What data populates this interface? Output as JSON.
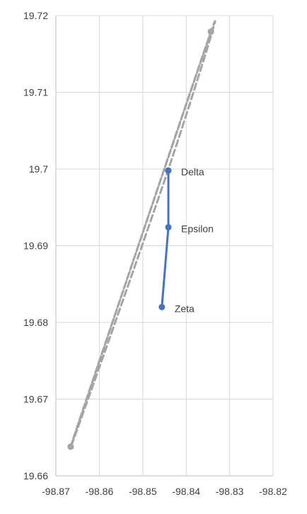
{
  "chart_data": {
    "type": "scatter",
    "title": "",
    "xlabel": "",
    "ylabel": "",
    "xlim": [
      -98.87,
      -98.82
    ],
    "ylim": [
      19.66,
      19.72
    ],
    "grid": true,
    "legend": "none",
    "x_ticks": [
      -98.87,
      -98.86,
      -98.85,
      -98.84,
      -98.83,
      -98.82
    ],
    "x_tick_labels": [
      "-98.87",
      "-98.86",
      "-98.85",
      "-98.84",
      "-98.83",
      "-98.82"
    ],
    "y_ticks": [
      19.66,
      19.67,
      19.68,
      19.69,
      19.7,
      19.71,
      19.72
    ],
    "y_tick_labels": [
      "19.66",
      "19.67",
      "19.68",
      "19.69",
      "19.7",
      "19.71",
      "19.72"
    ],
    "colors": {
      "grid": "#d9d9d9",
      "axis": "#bfbfbf",
      "outline_series": "#a5a5a5",
      "path_series": "#4472c4",
      "text": "#404040"
    },
    "series": [
      {
        "style": "dashed-curve",
        "color": "#a5a5a5",
        "points": [
          {
            "x": -98.8666,
            "y": 19.6638
          },
          {
            "x": -98.8343,
            "y": 19.7179
          },
          {
            "x": -98.8442,
            "y": 19.6998
          },
          {
            "x": -98.8666,
            "y": 19.6638
          },
          {
            "x": -98.8343,
            "y": 19.7179
          }
        ]
      },
      {
        "style": "solid",
        "color": "#4472c4",
        "points": [
          {
            "x": -98.8441,
            "y": 19.6998,
            "label": "Delta"
          },
          {
            "x": -98.8441,
            "y": 19.6924,
            "label": "Epsilon"
          },
          {
            "x": -98.8456,
            "y": 19.682,
            "label": "Zeta"
          }
        ]
      }
    ]
  }
}
